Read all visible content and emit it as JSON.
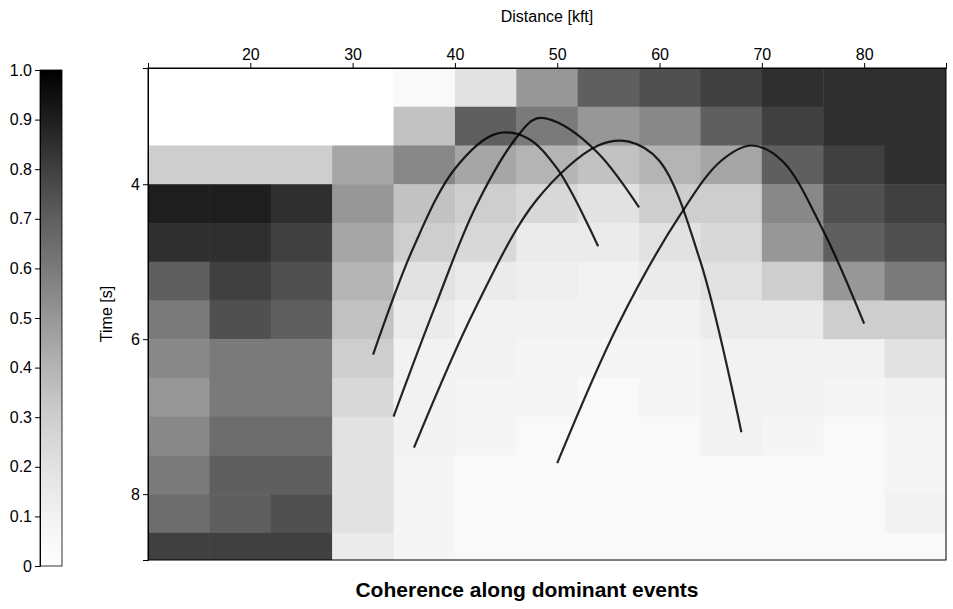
{
  "chart_data": {
    "type": "heatmap",
    "title": "Coherence along dominant events",
    "x_label": "Distance [kft]",
    "y_label": "Time [s]",
    "x": [
      13,
      19,
      25,
      31,
      37,
      43,
      49,
      55,
      61,
      67,
      73,
      79,
      85
    ],
    "y": [
      2.75,
      3.25,
      3.75,
      4.25,
      4.75,
      5.25,
      5.75,
      6.25,
      6.75,
      7.25,
      7.75,
      8.25,
      8.75
    ],
    "values": [
      [
        0,
        0,
        0,
        0,
        0.05,
        0.2,
        0.5,
        0.7,
        0.75,
        0.8,
        0.85,
        0.85,
        0.85
      ],
      [
        0,
        0,
        0,
        0,
        0.35,
        0.7,
        0.6,
        0.5,
        0.55,
        0.7,
        0.8,
        0.85,
        0.85
      ],
      [
        0.3,
        0.3,
        0.3,
        0.45,
        0.55,
        0.45,
        0.4,
        0.35,
        0.4,
        0.45,
        0.7,
        0.8,
        0.85
      ],
      [
        0.9,
        0.9,
        0.85,
        0.5,
        0.35,
        0.3,
        0.25,
        0.2,
        0.3,
        0.3,
        0.55,
        0.75,
        0.8
      ],
      [
        0.85,
        0.85,
        0.8,
        0.45,
        0.3,
        0.25,
        0.15,
        0.15,
        0.2,
        0.25,
        0.5,
        0.7,
        0.75
      ],
      [
        0.7,
        0.8,
        0.75,
        0.4,
        0.2,
        0.15,
        0.12,
        0.1,
        0.15,
        0.2,
        0.3,
        0.5,
        0.6
      ],
      [
        0.6,
        0.75,
        0.7,
        0.35,
        0.15,
        0.1,
        0.1,
        0.1,
        0.1,
        0.15,
        0.15,
        0.3,
        0.3
      ],
      [
        0.55,
        0.6,
        0.6,
        0.3,
        0.1,
        0.1,
        0.08,
        0.08,
        0.08,
        0.1,
        0.1,
        0.1,
        0.2
      ],
      [
        0.5,
        0.6,
        0.6,
        0.25,
        0.1,
        0.08,
        0.08,
        0.05,
        0.08,
        0.1,
        0.1,
        0.08,
        0.1
      ],
      [
        0.55,
        0.65,
        0.65,
        0.2,
        0.1,
        0.08,
        0.05,
        0.05,
        0.05,
        0.1,
        0.08,
        0.05,
        0.08
      ],
      [
        0.6,
        0.7,
        0.7,
        0.2,
        0.08,
        0.05,
        0.05,
        0.05,
        0.05,
        0.05,
        0.05,
        0.05,
        0.08
      ],
      [
        0.65,
        0.7,
        0.75,
        0.2,
        0.08,
        0.05,
        0.05,
        0.05,
        0.05,
        0.05,
        0.05,
        0.05,
        0.1
      ],
      [
        0.8,
        0.8,
        0.8,
        0.15,
        0.08,
        0.05,
        0.05,
        0.05,
        0.05,
        0.05,
        0.05,
        0.05,
        0.05
      ]
    ],
    "xlim": [
      10,
      88
    ],
    "ylim": [
      2.5,
      8.85
    ],
    "xticks": [
      20,
      30,
      40,
      50,
      60,
      70,
      80
    ],
    "yticks": [
      4,
      6,
      8
    ],
    "colorbar": {
      "range": [
        0,
        1
      ],
      "ticks": [
        0,
        0.1,
        0.2,
        0.3,
        0.4,
        0.5,
        0.6,
        0.7,
        0.8,
        0.9,
        {
          "value": 1,
          "label": "1.0"
        }
      ]
    },
    "series": [
      {
        "type": "line",
        "color": "#000000",
        "x": [
          34,
          38,
          42,
          46,
          48,
          50,
          54,
          58
        ],
        "values": [
          7.0,
          5.6,
          4.3,
          3.4,
          3.15,
          3.2,
          3.6,
          4.3
        ]
      },
      {
        "type": "line",
        "color": "#000000",
        "x": [
          36,
          42,
          48,
          54,
          57,
          60,
          64,
          68
        ],
        "values": [
          7.4,
          5.6,
          4.2,
          3.5,
          3.45,
          3.7,
          5.0,
          7.2
        ]
      },
      {
        "type": "line",
        "color": "#000000",
        "x": [
          50,
          56,
          62,
          66,
          69,
          72,
          76,
          80
        ],
        "values": [
          7.6,
          5.8,
          4.4,
          3.7,
          3.5,
          3.7,
          4.6,
          5.8
        ]
      },
      {
        "type": "line",
        "color": "#000000",
        "x": [
          32,
          36,
          40,
          44,
          47,
          50,
          54
        ],
        "values": [
          6.2,
          4.8,
          3.8,
          3.35,
          3.4,
          3.8,
          4.8
        ]
      }
    ]
  }
}
